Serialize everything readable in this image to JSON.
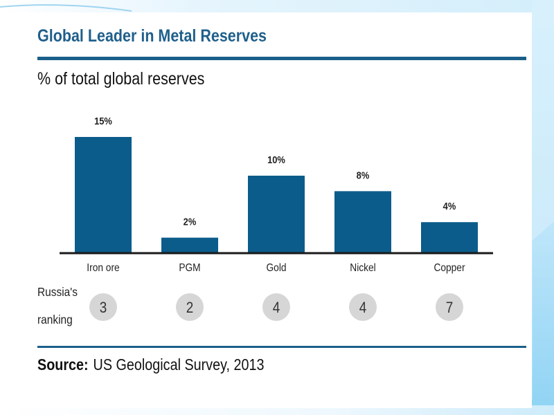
{
  "title": "Global Leader in Metal Reserves",
  "subtitle": "% of total global reserves",
  "source": {
    "label": "Source:",
    "text": "US Geological Survey, 2013"
  },
  "ranking_label": [
    "Russia's",
    "ranking"
  ],
  "colors": {
    "bar": "#0b5c8a",
    "title": "#1f5f8b",
    "rule": "#1a5f8a",
    "rank_circle": "#d6d6d6"
  },
  "chart_data": {
    "type": "bar",
    "categories": [
      "Iron ore",
      "PGM",
      "Gold",
      "Nickel",
      "Copper"
    ],
    "values": [
      15,
      2,
      10,
      8,
      4
    ],
    "data_labels": [
      "15%",
      "2%",
      "10%",
      "8%",
      "4%"
    ],
    "ranking": [
      3,
      2,
      4,
      4,
      7
    ],
    "title": "Global Leader in Metal Reserves",
    "ylabel": "% of total global reserves",
    "ylim": [
      0,
      15
    ],
    "grid": false,
    "legend": "none"
  }
}
